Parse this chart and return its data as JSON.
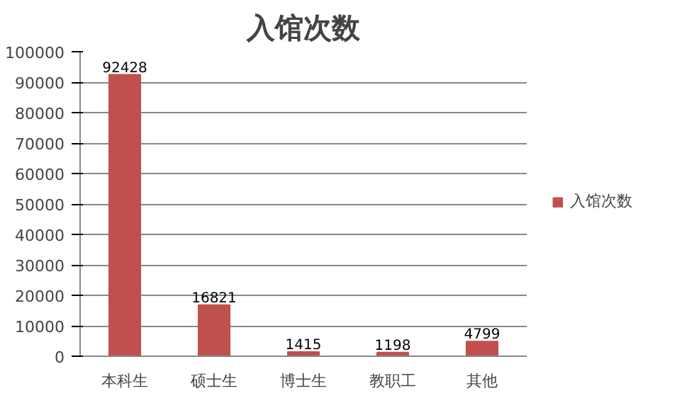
{
  "chart_data": {
    "type": "bar",
    "title": "入馆次数",
    "categories": [
      "本科生",
      "硕士生",
      "博士生",
      "教职工",
      "其他"
    ],
    "series": [
      {
        "name": "入馆次数",
        "color": "#c0504d",
        "values": [
          92428,
          16821,
          1415,
          1198,
          4799
        ]
      }
    ],
    "ylim": [
      0,
      100000
    ],
    "yticks": [
      0,
      10000,
      20000,
      30000,
      40000,
      50000,
      60000,
      70000,
      80000,
      90000,
      100000
    ],
    "grid": "y",
    "legend": "right",
    "data_labels": true
  }
}
